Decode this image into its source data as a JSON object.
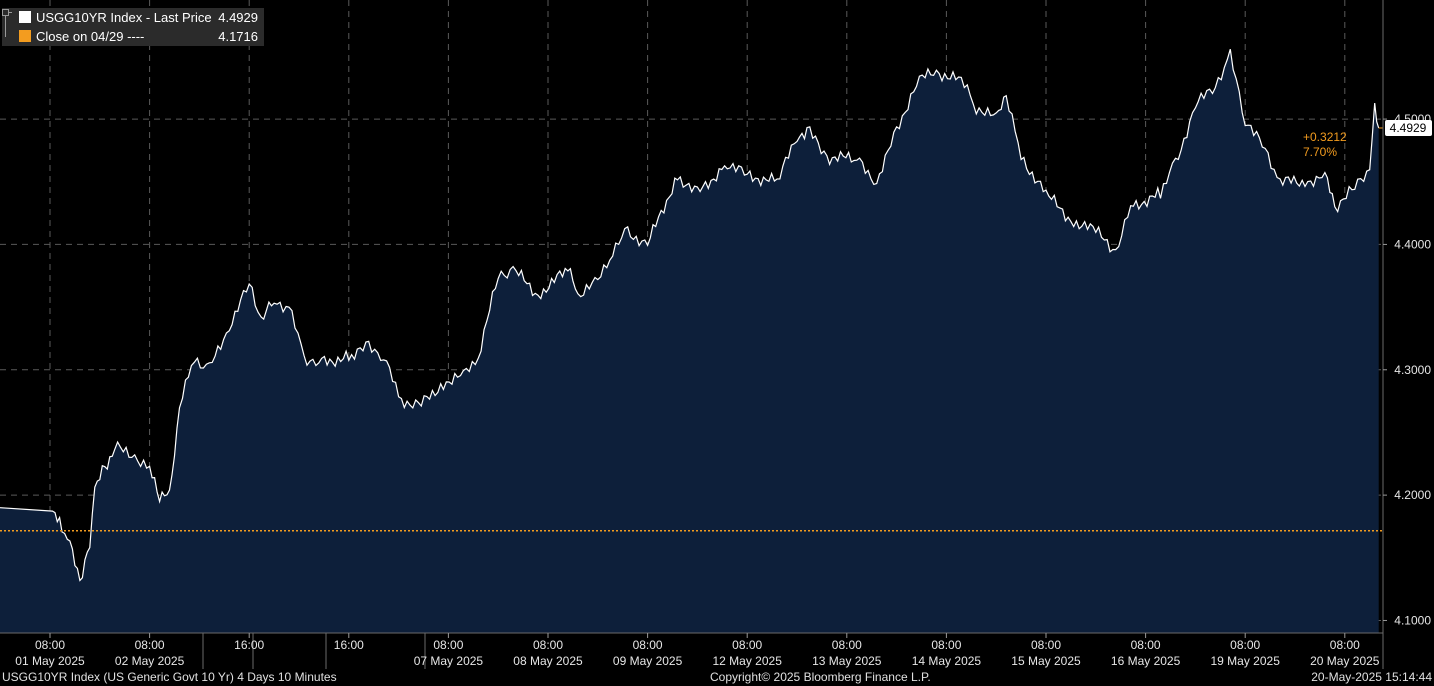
{
  "legend": {
    "series_label": "USGG10YR Index - Last Price",
    "series_value": "4.4929",
    "close_label": "Close on 04/29 ----",
    "close_value": "4.1716"
  },
  "change_annotation": {
    "change": "+0.3212",
    "percent": "7.70%"
  },
  "footer": {
    "left": "USGG10YR Index (US Generic Govt 10 Yr) 4 Days 10 Minutes",
    "center": "Copyright© 2025 Bloomberg Finance L.P.",
    "right": "20-May-2025 15:14:44"
  },
  "colors": {
    "background": "#000000",
    "area_fill": "#0d1f3a",
    "price_line": "#ffffff",
    "close_line": "#f39c1f",
    "annotation": "#f39c1f",
    "grid": "#5a5a5a",
    "legend_bg": "#2b2b2b"
  },
  "chart_data": {
    "type": "area",
    "title": "USGG10YR Index - Last Price",
    "y_axis_side": "right",
    "ylim": [
      4.09,
      4.595
    ],
    "y_ticks": [
      "4.1000",
      "4.2000",
      "4.3000",
      "4.4000",
      "4.5000"
    ],
    "last_price": 4.4929,
    "last_price_label": "4.4929",
    "reference_close": 4.1716,
    "grid": true,
    "x_ticks": [
      {
        "time": "08:00",
        "date": "01 May 2025"
      },
      {
        "time": "08:00",
        "date": "02 May 2025"
      },
      {
        "time": "16:00",
        "date": ""
      },
      {
        "time": "16:00",
        "date": ""
      },
      {
        "time": "08:00",
        "date": "07 May 2025"
      },
      {
        "time": "08:00",
        "date": "08 May 2025"
      },
      {
        "time": "08:00",
        "date": "09 May 2025"
      },
      {
        "time": "08:00",
        "date": "12 May 2025"
      },
      {
        "time": "08:00",
        "date": "13 May 2025"
      },
      {
        "time": "08:00",
        "date": "14 May 2025"
      },
      {
        "time": "08:00",
        "date": "15 May 2025"
      },
      {
        "time": "08:00",
        "date": "16 May 2025"
      },
      {
        "time": "08:00",
        "date": "19 May 2025"
      },
      {
        "time": "08:00",
        "date": "20 May 2025"
      }
    ],
    "series": [
      {
        "name": "USGG10YR Index",
        "points": [
          [
            0,
            4.19
          ],
          [
            0.05,
            4.182
          ],
          [
            0.12,
            4.176
          ],
          [
            0.2,
            4.16
          ],
          [
            0.3,
            4.132
          ],
          [
            0.4,
            4.16
          ],
          [
            0.45,
            4.205
          ],
          [
            0.55,
            4.222
          ],
          [
            0.65,
            4.238
          ],
          [
            0.85,
            4.232
          ],
          [
            1.0,
            4.22
          ],
          [
            1.1,
            4.2
          ],
          [
            1.2,
            4.2
          ],
          [
            1.3,
            4.27
          ],
          [
            1.45,
            4.31
          ],
          [
            1.6,
            4.3
          ],
          [
            1.8,
            4.335
          ],
          [
            2.0,
            4.368
          ],
          [
            2.12,
            4.34
          ],
          [
            2.25,
            4.355
          ],
          [
            2.4,
            4.35
          ],
          [
            2.55,
            4.31
          ],
          [
            2.7,
            4.306
          ],
          [
            3.0,
            4.31
          ],
          [
            3.2,
            4.318
          ],
          [
            3.35,
            4.312
          ],
          [
            3.5,
            4.278
          ],
          [
            3.7,
            4.27
          ],
          [
            3.95,
            4.29
          ],
          [
            4.15,
            4.295
          ],
          [
            4.3,
            4.31
          ],
          [
            4.5,
            4.375
          ],
          [
            4.65,
            4.38
          ],
          [
            4.9,
            4.36
          ],
          [
            5.2,
            4.38
          ],
          [
            5.3,
            4.36
          ],
          [
            5.5,
            4.37
          ],
          [
            5.65,
            4.395
          ],
          [
            5.8,
            4.41
          ],
          [
            6.0,
            4.4
          ],
          [
            6.3,
            4.455
          ],
          [
            6.5,
            4.44
          ],
          [
            6.8,
            4.465
          ],
          [
            7.0,
            4.455
          ],
          [
            7.3,
            4.45
          ],
          [
            7.5,
            4.485
          ],
          [
            7.6,
            4.492
          ],
          [
            7.8,
            4.47
          ],
          [
            8.1,
            4.468
          ],
          [
            8.3,
            4.45
          ],
          [
            8.5,
            4.49
          ],
          [
            8.7,
            4.53
          ],
          [
            8.9,
            4.538
          ],
          [
            9.15,
            4.53
          ],
          [
            9.3,
            4.51
          ],
          [
            9.5,
            4.5
          ],
          [
            9.6,
            4.52
          ],
          [
            9.75,
            4.47
          ],
          [
            10.0,
            4.44
          ],
          [
            10.25,
            4.42
          ],
          [
            10.5,
            4.41
          ],
          [
            10.7,
            4.395
          ],
          [
            10.85,
            4.43
          ],
          [
            11.15,
            4.44
          ],
          [
            11.3,
            4.465
          ],
          [
            11.5,
            4.51
          ],
          [
            11.7,
            4.528
          ],
          [
            11.85,
            4.55
          ],
          [
            12.0,
            4.5
          ],
          [
            12.2,
            4.475
          ],
          [
            12.35,
            4.45
          ],
          [
            12.6,
            4.45
          ],
          [
            12.8,
            4.455
          ],
          [
            12.9,
            4.43
          ],
          [
            13.1,
            4.445
          ],
          [
            13.25,
            4.46
          ],
          [
            13.3,
            4.51
          ],
          [
            13.34,
            4.4929
          ]
        ]
      }
    ]
  }
}
